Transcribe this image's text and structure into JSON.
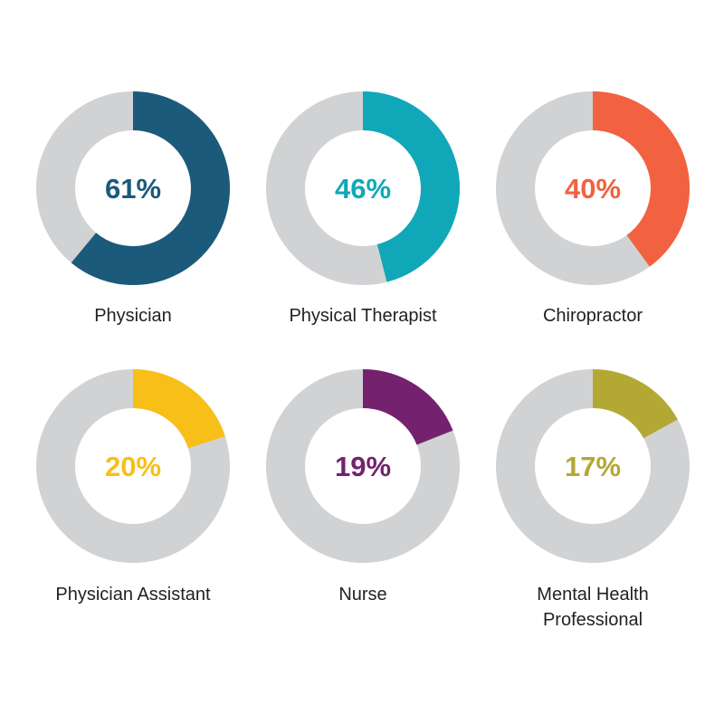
{
  "chart_data": [
    {
      "type": "pie",
      "label": "Physician",
      "value": 61,
      "value_text": "61%",
      "color": "#1b5a7b",
      "track_color": "#d1d2d4"
    },
    {
      "type": "pie",
      "label": "Physical Therapist",
      "value": 46,
      "value_text": "46%",
      "color": "#10a8b8",
      "track_color": "#d1d2d4"
    },
    {
      "type": "pie",
      "label": "Chiropractor",
      "value": 40,
      "value_text": "40%",
      "color": "#f26241",
      "track_color": "#d1d2d4"
    },
    {
      "type": "pie",
      "label": "Physician Assistant",
      "value": 20,
      "value_text": "20%",
      "color": "#f7bf17",
      "track_color": "#d1d2d4"
    },
    {
      "type": "pie",
      "label": "Nurse",
      "value": 19,
      "value_text": "19%",
      "color": "#74226e",
      "track_color": "#d1d2d4"
    },
    {
      "type": "pie",
      "label": "Mental Health\nProfessional",
      "value": 17,
      "value_text": "17%",
      "color": "#b4a834",
      "track_color": "#d1d2d4"
    }
  ]
}
